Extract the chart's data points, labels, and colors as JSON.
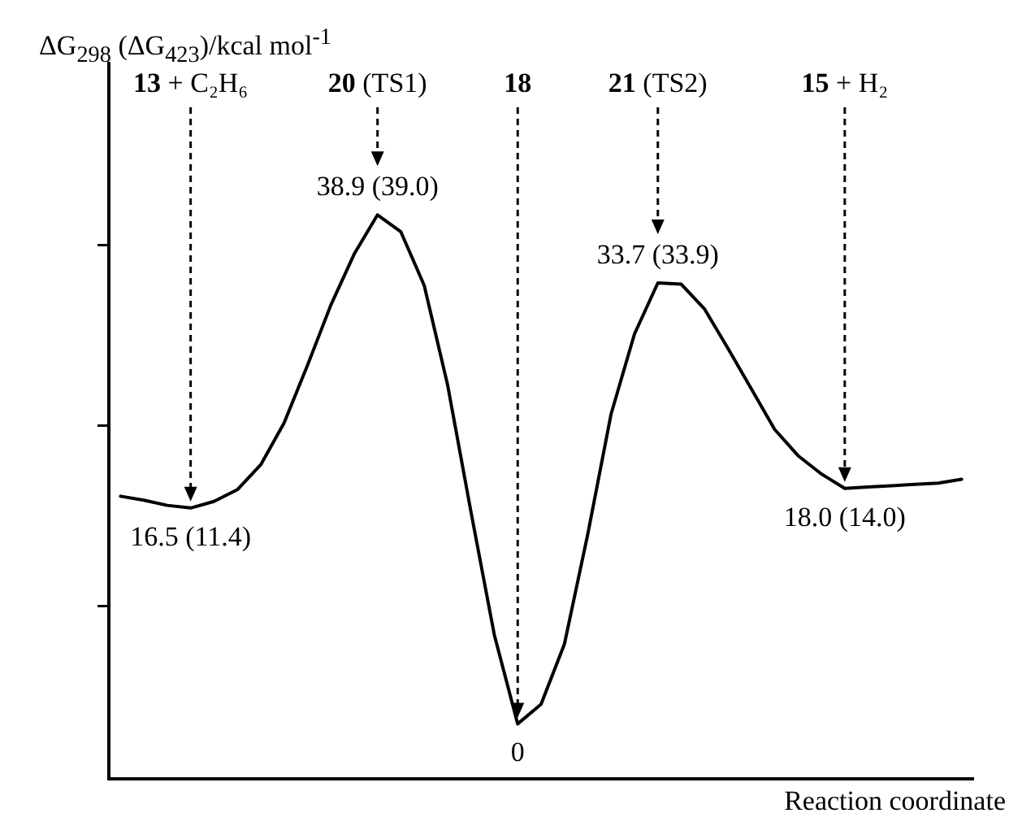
{
  "chart_data": {
    "type": "line",
    "ylabel": "ΔG$_{298}$ (ΔG$_{423}$)/kcal mol$^{-1}$",
    "xlabel": "Reaction coordinate",
    "color": "#000000",
    "marker": "none",
    "line_style": "solid",
    "grid": false,
    "tick_labels": false,
    "categories": [
      null,
      null,
      null,
      null,
      null,
      null,
      null,
      null,
      null,
      null,
      null,
      null,
      null,
      null,
      null,
      null,
      null,
      null,
      null,
      null,
      null,
      null,
      null,
      null,
      null,
      null,
      null,
      null,
      null,
      null,
      null,
      null,
      null,
      null,
      null,
      null,
      null
    ],
    "values": [
      17.4,
      17.1,
      16.7,
      16.5,
      17.0,
      17.9,
      19.8,
      23.0,
      27.4,
      32.0,
      35.9,
      38.9,
      37.6,
      33.5,
      25.9,
      16.2,
      6.8,
      0,
      1.5,
      6.1,
      14.5,
      23.7,
      29.8,
      33.7,
      33.6,
      31.7,
      28.7,
      25.6,
      22.5,
      20.5,
      19.1,
      18.0,
      18.1,
      18.2,
      18.3,
      18.4,
      18.7
    ],
    "value_labels": [
      null,
      null,
      null,
      "16.5 (11.4)",
      null,
      null,
      null,
      null,
      null,
      null,
      null,
      "38.9 (39.0)",
      null,
      null,
      null,
      null,
      null,
      "0",
      null,
      null,
      null,
      null,
      null,
      "33.7 (33.9)",
      null,
      null,
      null,
      null,
      null,
      null,
      null,
      "18.0 (14.0)",
      null,
      null,
      null,
      null,
      null
    ],
    "annotations": [
      "13 + C₂H₆",
      "20 (TS1)",
      "18",
      "21 (TS2)",
      "15 + H₂"
    ],
    "ylim": [
      -4.2,
      50.6
    ],
    "yticks": [
      {
        "value": 9,
        "label": null
      },
      {
        "value": 22.8,
        "label": null
      },
      {
        "value": 36.6,
        "label": null
      }
    ]
  }
}
